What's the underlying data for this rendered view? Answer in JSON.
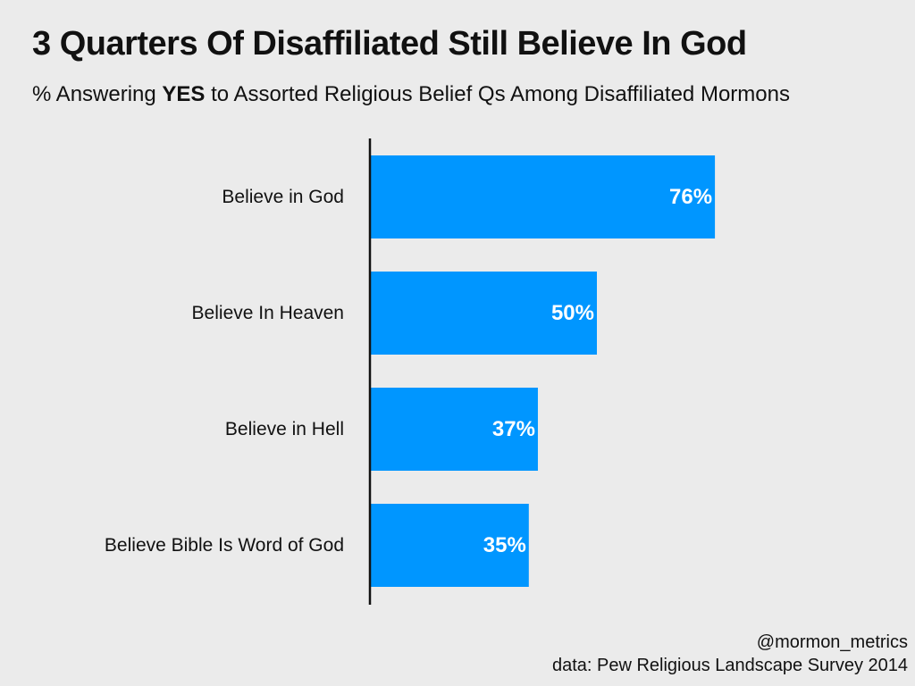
{
  "title": "3 Quarters Of Disaffiliated Still Believe In God",
  "subtitle": {
    "prefix": "% Answering ",
    "emphasis": "YES",
    "suffix": " to Assorted Religious Belief Qs Among Disaffiliated Mormons"
  },
  "footer": {
    "handle": "@mormon_metrics",
    "source": "data: Pew Religious Landscape Survey 2014"
  },
  "colors": {
    "bar": "#0096ff",
    "axis": "#111111",
    "background": "#ebebeb",
    "bar_label": "#ffffff"
  },
  "chart_data": {
    "type": "bar",
    "orientation": "horizontal",
    "title": "3 Quarters Of Disaffiliated Still Believe In God",
    "subtitle": "% Answering YES to Assorted Religious Belief Qs Among Disaffiliated Mormons",
    "categories": [
      "Believe in God",
      "Believe In Heaven",
      "Believe in Hell",
      "Believe Bible Is Word of God"
    ],
    "values": [
      76,
      50,
      37,
      35
    ],
    "value_labels": [
      "76%",
      "50%",
      "37%",
      "35%"
    ],
    "unit": "%",
    "xlim": [
      0,
      100
    ],
    "xlabel": "",
    "ylabel": "",
    "grid": false,
    "legend": "none"
  }
}
